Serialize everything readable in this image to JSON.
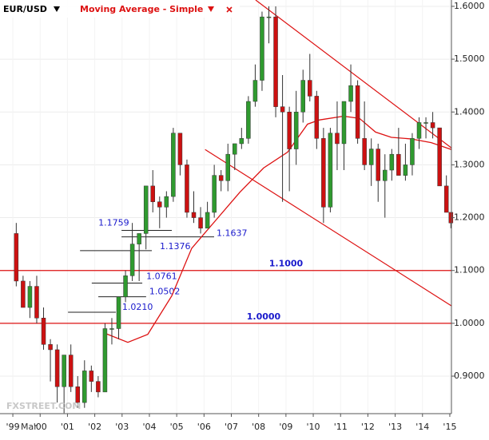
{
  "chart_data": {
    "type": "candlestick",
    "symbol": "EUR/USD",
    "watermark": "FXSTREET.COM",
    "x_cursor_label": "Mar",
    "up_color": "#2f9a2f",
    "down_color": "#cc1111",
    "grid": true,
    "xlim": [
      1998.53,
      2015.06
    ],
    "ylim": [
      0.829,
      1.612
    ],
    "xticks": [
      {
        "value": 1999,
        "label": "'99"
      },
      {
        "value": 2000,
        "label": "'00"
      },
      {
        "value": 2001,
        "label": "'01"
      },
      {
        "value": 2002,
        "label": "'02"
      },
      {
        "value": 2003,
        "label": "'03"
      },
      {
        "value": 2004,
        "label": "'04"
      },
      {
        "value": 2005,
        "label": "'05"
      },
      {
        "value": 2006,
        "label": "'06"
      },
      {
        "value": 2007,
        "label": "'07"
      },
      {
        "value": 2008,
        "label": "'08"
      },
      {
        "value": 2009,
        "label": "'09"
      },
      {
        "value": 2010,
        "label": "'10"
      },
      {
        "value": 2011,
        "label": "'11"
      },
      {
        "value": 2012,
        "label": "'12"
      },
      {
        "value": 2013,
        "label": "'13"
      },
      {
        "value": 2014,
        "label": "'14"
      },
      {
        "value": 2015,
        "label": "'15"
      }
    ],
    "yticks": [
      {
        "value": 0.9,
        "label": "0.9000"
      },
      {
        "value": 1.0,
        "label": "1.0000"
      },
      {
        "value": 1.1,
        "label": "1.1000"
      },
      {
        "value": 1.2,
        "label": "1.2000"
      },
      {
        "value": 1.3,
        "label": "1.3000"
      },
      {
        "value": 1.4,
        "label": "1.4000"
      },
      {
        "value": 1.5,
        "label": "1.5000"
      },
      {
        "value": 1.6,
        "label": "1.6000"
      }
    ],
    "x": [
      1999.125,
      1999.375,
      1999.625,
      1999.875,
      2000.125,
      2000.375,
      2000.625,
      2000.875,
      2001.125,
      2001.375,
      2001.625,
      2001.875,
      2002.125,
      2002.375,
      2002.625,
      2002.875,
      2003.125,
      2003.375,
      2003.625,
      2003.875,
      2004.125,
      2004.375,
      2004.625,
      2004.875,
      2005.125,
      2005.375,
      2005.625,
      2005.875,
      2006.125,
      2006.375,
      2006.625,
      2006.875,
      2007.125,
      2007.375,
      2007.625,
      2007.875,
      2008.125,
      2008.375,
      2008.625,
      2008.875,
      2009.125,
      2009.375,
      2009.625,
      2009.875,
      2010.125,
      2010.375,
      2010.625,
      2010.875,
      2011.125,
      2011.375,
      2011.625,
      2011.875,
      2012.125,
      2012.375,
      2012.625,
      2012.875,
      2013.125,
      2013.375,
      2013.625,
      2013.875,
      2014.125,
      2014.375,
      2014.625,
      2014.875,
      2015.04
    ],
    "open": [
      1.17,
      1.08,
      1.03,
      1.07,
      1.01,
      0.96,
      0.95,
      0.88,
      0.94,
      0.88,
      0.85,
      0.91,
      0.89,
      0.87,
      0.99,
      0.99,
      1.05,
      1.09,
      1.15,
      1.17,
      1.26,
      1.23,
      1.22,
      1.24,
      1.36,
      1.3,
      1.21,
      1.2,
      1.18,
      1.21,
      1.28,
      1.27,
      1.32,
      1.34,
      1.35,
      1.42,
      1.46,
      1.58,
      1.58,
      1.41,
      1.4,
      1.33,
      1.4,
      1.46,
      1.43,
      1.35,
      1.22,
      1.36,
      1.34,
      1.42,
      1.45,
      1.35,
      1.3,
      1.33,
      1.27,
      1.29,
      1.32,
      1.28,
      1.3,
      1.35,
      1.38,
      1.38,
      1.37,
      1.26,
      1.21
    ],
    "high": [
      1.19,
      1.09,
      1.08,
      1.09,
      1.03,
      0.97,
      0.96,
      0.94,
      0.96,
      0.9,
      0.93,
      0.92,
      0.9,
      1.0,
      1.01,
      1.05,
      1.1,
      1.19,
      1.17,
      1.26,
      1.29,
      1.24,
      1.25,
      1.37,
      1.36,
      1.31,
      1.25,
      1.22,
      1.23,
      1.3,
      1.29,
      1.34,
      1.34,
      1.37,
      1.43,
      1.49,
      1.59,
      1.6,
      1.6,
      1.47,
      1.41,
      1.44,
      1.48,
      1.51,
      1.44,
      1.37,
      1.37,
      1.42,
      1.42,
      1.49,
      1.46,
      1.42,
      1.35,
      1.34,
      1.32,
      1.33,
      1.37,
      1.34,
      1.36,
      1.39,
      1.39,
      1.4,
      1.37,
      1.28,
      1.21
    ],
    "low": [
      1.07,
      1.03,
      1.01,
      1.0,
      0.95,
      0.89,
      0.85,
      0.83,
      0.87,
      0.84,
      0.84,
      0.87,
      0.86,
      0.87,
      0.96,
      0.97,
      1.04,
      1.08,
      1.08,
      1.14,
      1.21,
      1.18,
      1.2,
      1.23,
      1.28,
      1.2,
      1.19,
      1.17,
      1.18,
      1.2,
      1.25,
      1.25,
      1.29,
      1.33,
      1.34,
      1.41,
      1.44,
      1.53,
      1.39,
      1.23,
      1.25,
      1.3,
      1.38,
      1.42,
      1.33,
      1.19,
      1.21,
      1.29,
      1.29,
      1.4,
      1.34,
      1.29,
      1.26,
      1.23,
      1.2,
      1.27,
      1.28,
      1.27,
      1.28,
      1.33,
      1.35,
      1.35,
      1.26,
      1.21,
      1.18
    ],
    "close": [
      1.08,
      1.03,
      1.07,
      1.01,
      0.96,
      0.95,
      0.88,
      0.94,
      0.88,
      0.85,
      0.91,
      0.89,
      0.87,
      0.99,
      0.99,
      1.05,
      1.09,
      1.15,
      1.17,
      1.26,
      1.23,
      1.22,
      1.24,
      1.36,
      1.3,
      1.21,
      1.2,
      1.18,
      1.21,
      1.28,
      1.27,
      1.32,
      1.34,
      1.35,
      1.42,
      1.46,
      1.58,
      1.58,
      1.41,
      1.4,
      1.33,
      1.4,
      1.46,
      1.43,
      1.35,
      1.22,
      1.36,
      1.34,
      1.42,
      1.45,
      1.35,
      1.3,
      1.33,
      1.27,
      1.29,
      1.32,
      1.28,
      1.3,
      1.35,
      1.38,
      1.38,
      1.37,
      1.26,
      1.21,
      1.19
    ],
    "moving_average": {
      "name": "Moving Average - Simple",
      "color": "#dd1111",
      "x": [
        2002.33,
        2003.21,
        2003.94,
        2004.82,
        2005.55,
        2006.43,
        2007.31,
        2008.18,
        2009.06,
        2009.79,
        2010.23,
        2011.11,
        2011.69,
        2012.28,
        2012.86,
        2013.59,
        2014.32,
        2015.06
      ],
      "values": [
        0.982,
        0.964,
        0.979,
        1.052,
        1.142,
        1.195,
        1.248,
        1.294,
        1.324,
        1.377,
        1.385,
        1.392,
        1.388,
        1.362,
        1.352,
        1.349,
        1.342,
        1.329
      ]
    },
    "trendlines": [
      {
        "color": "#dd1111",
        "x": [
          2007.89,
          2015.06
        ],
        "y": [
          1.612,
          1.332
        ]
      },
      {
        "color": "#dd1111",
        "x": [
          2006.04,
          2015.06
        ],
        "y": [
          1.329,
          1.033
        ]
      }
    ],
    "levels": [
      {
        "value": 1.1,
        "label": "1.1000",
        "color": "#dd1111"
      },
      {
        "value": 1.0,
        "label": "1.0000",
        "color": "#dd1111"
      }
    ],
    "supports": [
      {
        "value": 1.1759,
        "label": "1.1759",
        "start": 2002.98,
        "end": 2004.82
      },
      {
        "value": 1.1637,
        "label": "1.1637",
        "start": 2002.98,
        "end": 2006.37
      },
      {
        "value": 1.1376,
        "label": "1.1376",
        "start": 2001.46,
        "end": 2004.09
      },
      {
        "value": 1.0761,
        "label": "1.0761",
        "start": 2001.89,
        "end": 2003.74
      },
      {
        "value": 1.0502,
        "label": "1.0502",
        "start": 2002.13,
        "end": 2003.88
      },
      {
        "value": 1.021,
        "label": "1.0210",
        "start": 2001.02,
        "end": 2002.77
      }
    ]
  }
}
